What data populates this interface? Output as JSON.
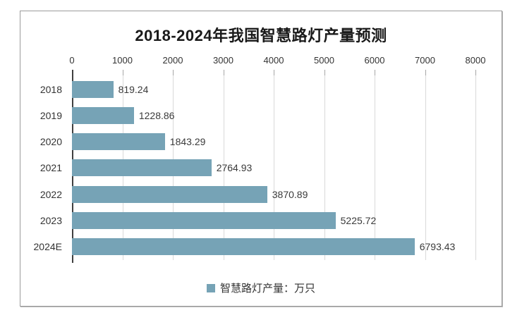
{
  "chart_data": {
    "type": "bar",
    "orientation": "horizontal",
    "title": "2018-2024年我国智慧路灯产量预测",
    "categories": [
      "2018",
      "2019",
      "2020",
      "2021",
      "2022",
      "2023",
      "2024E"
    ],
    "series": [
      {
        "name": "智慧路灯产量：万只",
        "values": [
          819.24,
          1228.86,
          1843.29,
          2764.93,
          3870.89,
          5225.72,
          6793.43
        ],
        "value_labels": [
          "819.24",
          "1228.86",
          "1843.29",
          "2764.93",
          "3870.89",
          "5225.72",
          "6793.43"
        ]
      }
    ],
    "xlabel": "",
    "ylabel": "",
    "xlim": [
      0,
      8000
    ],
    "x_ticks": [
      0,
      1000,
      2000,
      3000,
      4000,
      5000,
      6000,
      7000,
      8000
    ],
    "x_tick_labels": [
      "0",
      "1000",
      "2000",
      "3000",
      "4000",
      "5000",
      "6000",
      "7000",
      "8000"
    ],
    "axis_labels_position": "top",
    "grid": true,
    "legend_position": "bottom",
    "legend": [
      {
        "label": "智慧路灯产量：万只",
        "color": "#76a3b6"
      }
    ],
    "style": {
      "bar_color": "#76a3b6",
      "gridline_color": "#d9d9d9",
      "axis_line_color": "#404040",
      "tick_color": "#a6a6a6",
      "frame_border_color": "#9b9b9b",
      "title_color": "#1a1a1a",
      "label_color": "#333333",
      "background": "#ffffff"
    }
  }
}
